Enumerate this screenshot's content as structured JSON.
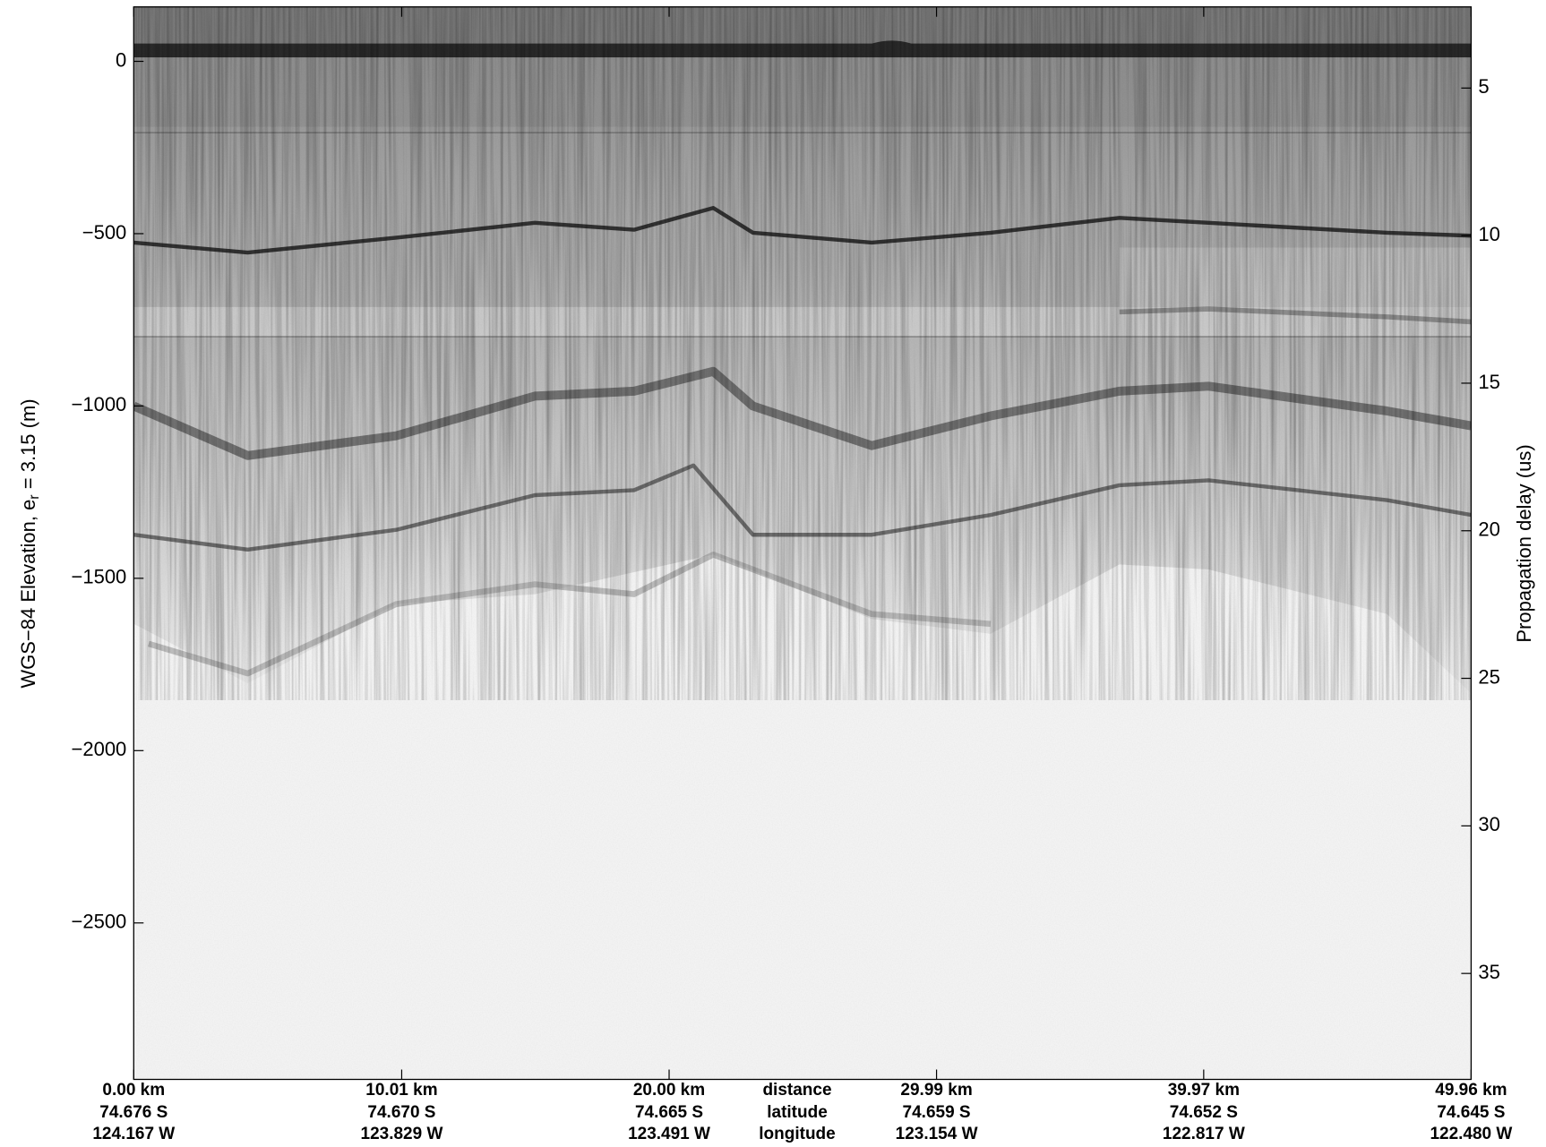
{
  "chart_data": {
    "type": "radargram",
    "y_label": {
      "text": "WGS−84 Elevation, e",
      "subscript": "r",
      "suffix": " = 3.15 (m)"
    },
    "y2_label": "Propagation delay (us)",
    "xlim": [
      0,
      49.96
    ],
    "ylim": [
      -2954,
      158
    ],
    "y2lim": [
      38.59,
      2.25
    ],
    "yticks": [
      {
        "value": -2500,
        "label": "−2500"
      },
      {
        "value": -2000,
        "label": "−2000"
      },
      {
        "value": -1500,
        "label": "−1500"
      },
      {
        "value": -1000,
        "label": "−1000"
      },
      {
        "value": -500,
        "label": "−500"
      },
      0
    ],
    "y2ticks": [
      5,
      10,
      15,
      20,
      25,
      30,
      35
    ],
    "xticks": [
      {
        "value": 0,
        "label": "0.00 km"
      },
      {
        "value": 10.01,
        "label": "10.01 km"
      },
      {
        "value": 20.0,
        "label": "20.00 km"
      },
      {
        "value": 29.99,
        "label": "29.99 km"
      },
      {
        "value": 39.97,
        "label": "39.97 km"
      },
      {
        "value": 49.96,
        "label": "49.96 km"
      }
    ],
    "x_latitudes": [
      "74.676 S",
      "74.670 S",
      "74.665 S",
      "74.659 S",
      "74.652 S",
      "74.645 S"
    ],
    "x_longitudes": [
      "124.167 W",
      "123.829 W",
      "123.491 W",
      "123.154 W",
      "122.817 W",
      "122.480 W"
    ],
    "x_row_names": [
      "distance",
      "latitude",
      "longitude"
    ]
  }
}
